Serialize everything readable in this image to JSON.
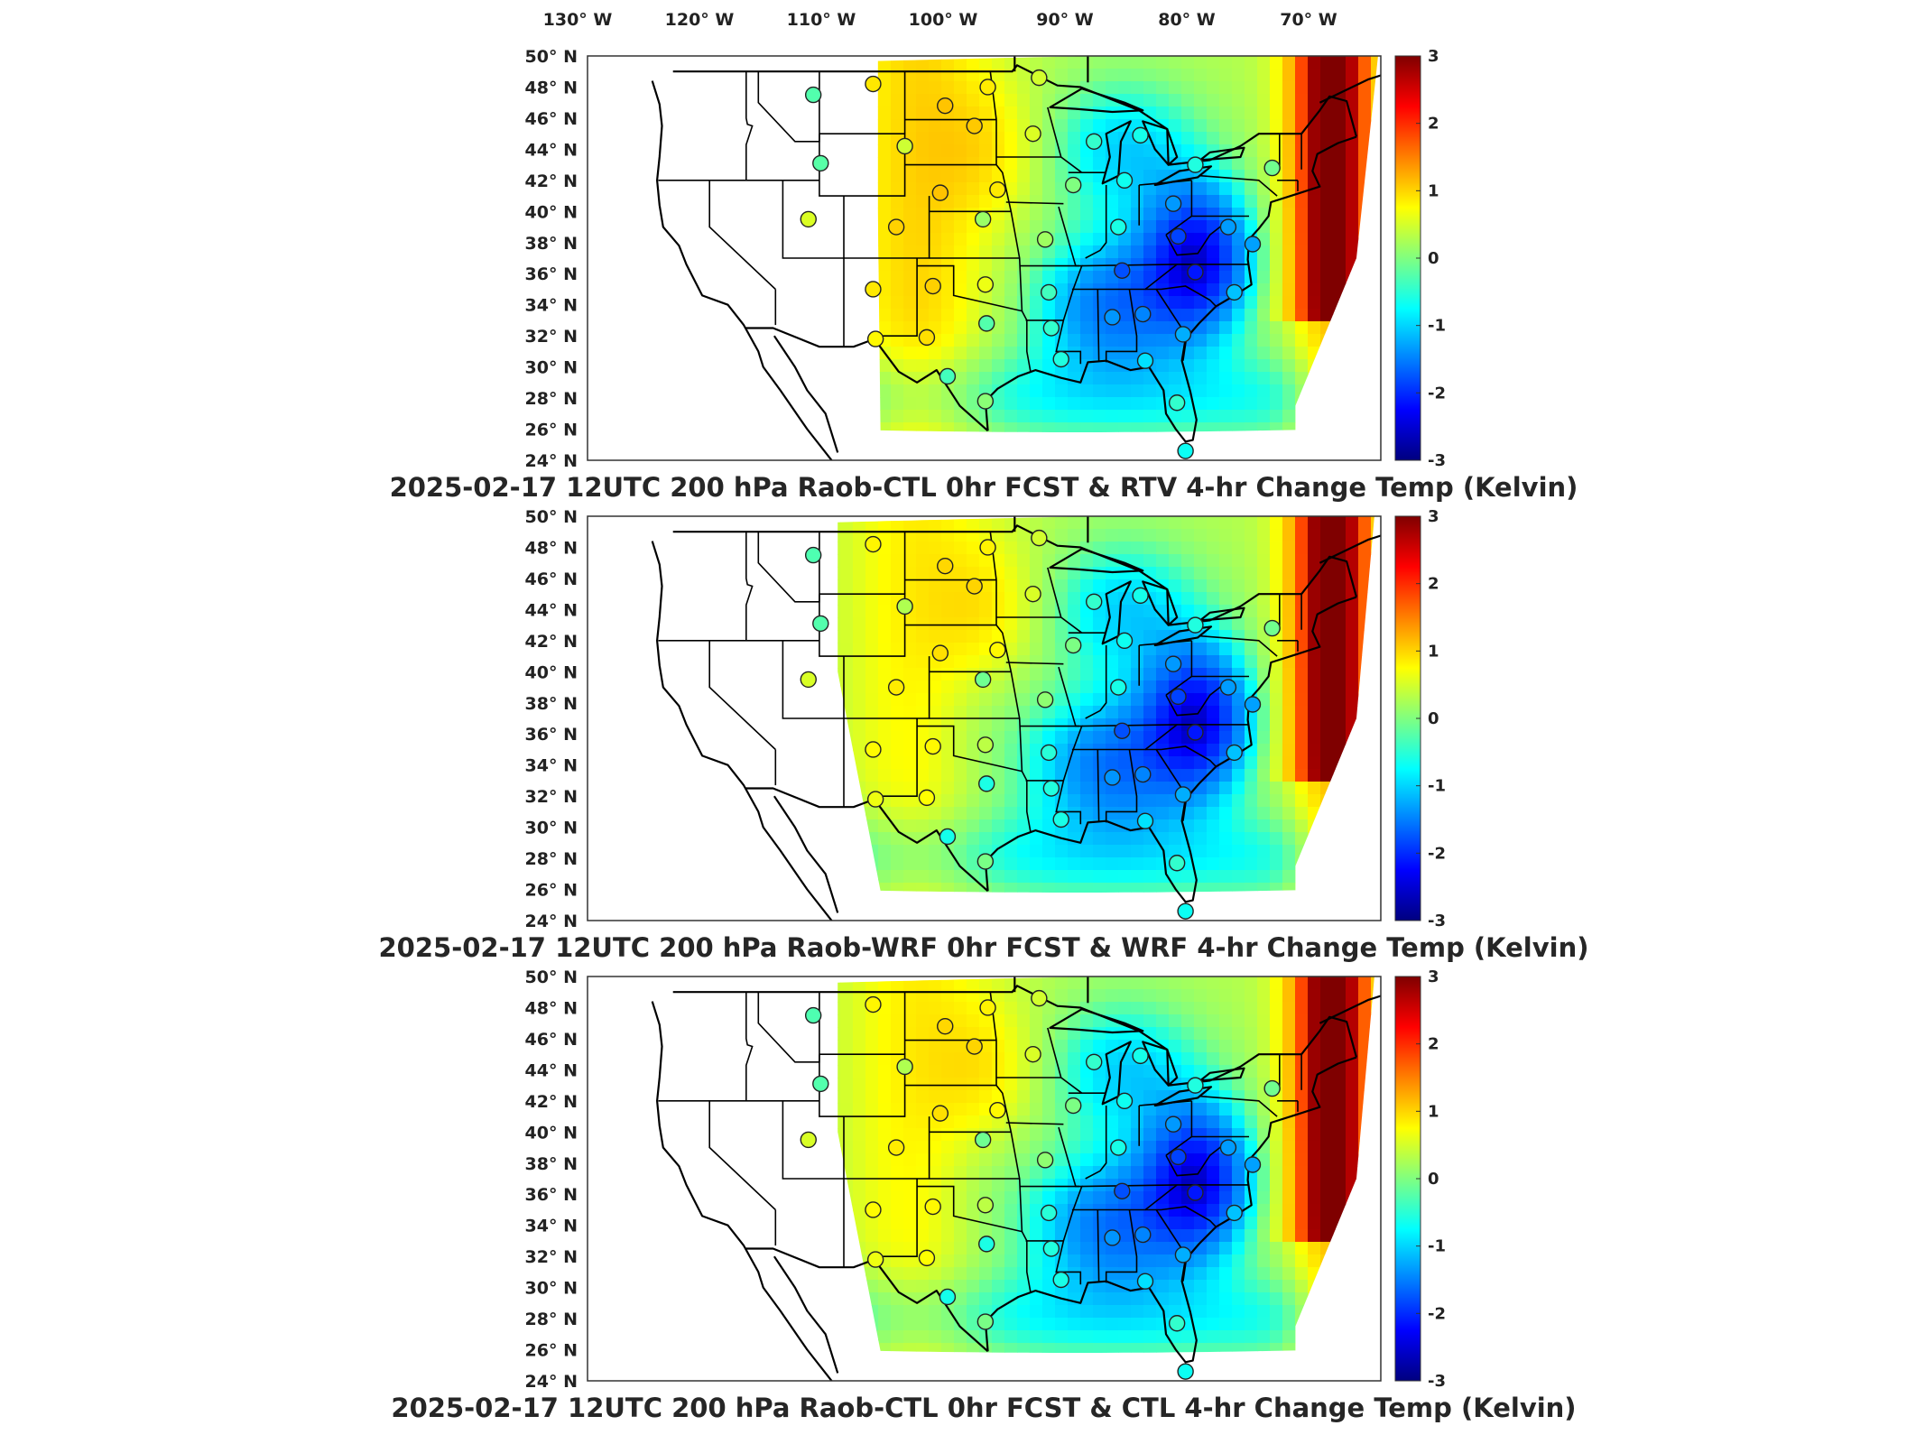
{
  "top_axis": {
    "lon_labels": [
      "130",
      "120",
      "110",
      "100",
      "90",
      "80",
      "70"
    ],
    "lon_suffix": "W",
    "deg": "°"
  },
  "lat_axis": {
    "labels": [
      "50",
      "48",
      "46",
      "44",
      "42",
      "40",
      "38",
      "36",
      "34",
      "32",
      "30",
      "28",
      "26",
      "24"
    ],
    "suffix": "N"
  },
  "colorbar": {
    "ticks": [
      "3",
      "2",
      "1",
      "0",
      "-1",
      "-2",
      "-3"
    ],
    "colors": [
      "#7f0000",
      "#ff0000",
      "#ff8000",
      "#ffff00",
      "#80ff80",
      "#00ffff",
      "#0080ff",
      "#0000ff",
      "#00007f"
    ]
  },
  "panels": [
    {
      "title": "2025-02-17 12UTC 200 hPa Raob-CTL 0hr FCST & RTV 4-hr Change Temp (Kelvin)"
    },
    {
      "title": "2025-02-17 12UTC 200 hPa Raob-WRF 0hr FCST & WRF 4-hr Change Temp (Kelvin)"
    },
    {
      "title": "2025-02-17 12UTC 200 hPa Raob-CTL 0hr FCST & CTL 4-hr Change Temp (Kelvin)"
    }
  ],
  "chart_data": {
    "type": "heatmap",
    "lon_range": [
      -130,
      -65
    ],
    "lat_range": [
      24,
      50
    ],
    "color_range": [
      -3,
      3
    ],
    "stations": [
      {
        "lon": -111.5,
        "lat": 47.5
      },
      {
        "lon": -106.6,
        "lat": 48.2
      },
      {
        "lon": -100.7,
        "lat": 46.8
      },
      {
        "lon": -97.2,
        "lat": 48.0
      },
      {
        "lon": -93.0,
        "lat": 48.6
      },
      {
        "lon": -104.0,
        "lat": 44.2
      },
      {
        "lon": -98.3,
        "lat": 45.5
      },
      {
        "lon": -93.5,
        "lat": 45.0
      },
      {
        "lon": -84.7,
        "lat": 44.9
      },
      {
        "lon": -88.5,
        "lat": 44.5
      },
      {
        "lon": -110.9,
        "lat": 43.1
      },
      {
        "lon": -101.1,
        "lat": 41.2
      },
      {
        "lon": -96.4,
        "lat": 41.4
      },
      {
        "lon": -90.2,
        "lat": 41.7
      },
      {
        "lon": -80.2,
        "lat": 43.0
      },
      {
        "lon": -73.9,
        "lat": 42.8
      },
      {
        "lon": -86.0,
        "lat": 42.0
      },
      {
        "lon": -82.0,
        "lat": 40.5
      },
      {
        "lon": -111.9,
        "lat": 39.5
      },
      {
        "lon": -104.7,
        "lat": 39.0
      },
      {
        "lon": -97.6,
        "lat": 39.5
      },
      {
        "lon": -92.5,
        "lat": 38.2
      },
      {
        "lon": -86.5,
        "lat": 39.0
      },
      {
        "lon": -81.6,
        "lat": 38.4
      },
      {
        "lon": -77.5,
        "lat": 39.0
      },
      {
        "lon": -75.5,
        "lat": 37.9
      },
      {
        "lon": -106.6,
        "lat": 35.0
      },
      {
        "lon": -101.7,
        "lat": 35.2
      },
      {
        "lon": -97.4,
        "lat": 35.3
      },
      {
        "lon": -92.2,
        "lat": 34.8
      },
      {
        "lon": -86.2,
        "lat": 36.2
      },
      {
        "lon": -80.2,
        "lat": 36.1
      },
      {
        "lon": -77.0,
        "lat": 34.8
      },
      {
        "lon": -106.4,
        "lat": 31.8
      },
      {
        "lon": -102.2,
        "lat": 31.9
      },
      {
        "lon": -97.3,
        "lat": 32.8
      },
      {
        "lon": -92.0,
        "lat": 32.5
      },
      {
        "lon": -87.0,
        "lat": 33.2
      },
      {
        "lon": -84.5,
        "lat": 33.4
      },
      {
        "lon": -81.2,
        "lat": 32.1
      },
      {
        "lon": -100.5,
        "lat": 29.4
      },
      {
        "lon": -97.4,
        "lat": 27.8
      },
      {
        "lon": -91.2,
        "lat": 30.5
      },
      {
        "lon": -84.3,
        "lat": 30.4
      },
      {
        "lon": -81.7,
        "lat": 27.7
      },
      {
        "lon": -81.0,
        "lat": 24.6
      }
    ]
  }
}
